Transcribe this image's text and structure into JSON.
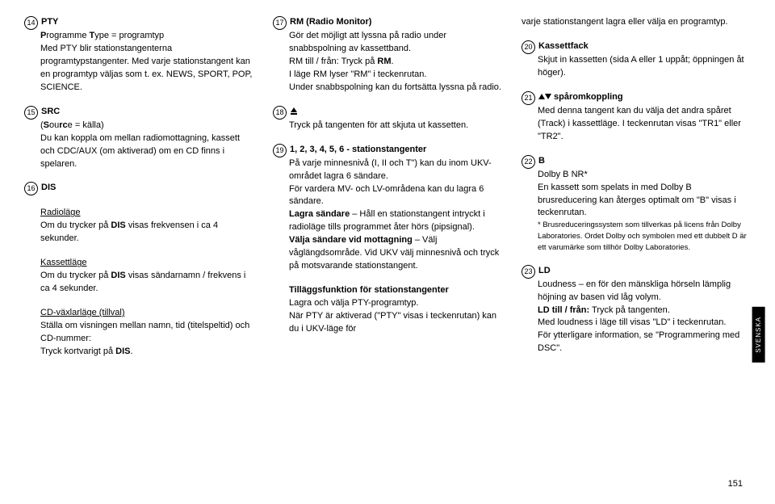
{
  "col1": {
    "n14": "14",
    "t14": "PTY",
    "p14a": "Programme Type = programtyp",
    "p14b": "Med PTY blir stationstangenterna programtypstangenter. Med varje stationstangent kan en programtyp väljas som t. ex. NEWS, SPORT, POP, SCIENCE.",
    "n15": "15",
    "t15": "SRC",
    "p15a": "(Source = källa)",
    "p15b": "Du kan koppla om mellan radiomottagning, kassett och CDC/AUX (om aktiverad) om en CD finns i spelaren.",
    "n16": "16",
    "t16": "DIS",
    "s1": "Radioläge",
    "p16a": "Om du trycker på DIS visas frekvensen i ca 4 sekunder.",
    "s2": "Kassettläge",
    "p16b": "Om du trycker på DIS visas sändarnamn / frekvens i ca 4 sekunder.",
    "s3": "CD-växlarläge (tillval)",
    "p16c": "Ställa om visningen mellan namn, tid (titelspeltid) och CD-nummer:",
    "p16d": "Tryck kortvarigt på DIS."
  },
  "col2": {
    "n17": "17",
    "t17": "RM (Radio Monitor)",
    "p17a": "Gör det möjligt att lyssna på radio under snabbspolning av kassettband.",
    "p17b": "RM till / från: Tryck på RM.",
    "p17c": "I läge RM lyser \"RM\" i teckenrutan.",
    "p17d": "Under snabbspolning kan du fortsätta lyssna på radio.",
    "n18": "18",
    "p18": "Tryck på tangenten för att skjuta ut kassetten.",
    "n19": "19",
    "t19": "1, 2, 3, 4, 5, 6 - stationstangenter",
    "p19a": "På varje minnesnivå (I, II och T\") kan du inom UKV-området lagra 6 sändare.",
    "p19b": "För vardera MV- och LV-områdena kan du lagra 6 sändare.",
    "p19c": "Lagra sändare – Håll en stationstangent intryckt i radioläge tills programmet åter hörs (pipsignal).",
    "p19d": "Välja sändare vid mottagning – Välj våglängdsområde. Vid UKV välj minnesnivå och tryck på motsvarande stationstangent.",
    "t19b": "Tilläggsfunktion för stationstangenter",
    "p19e": "Lagra och välja PTY-programtyp.",
    "p19f": "När PTY är aktiverad (\"PTY\" visas i teckenrutan) kan du i UKV-läge för"
  },
  "col3": {
    "p20a": "varje stationstangent lagra eller välja en programtyp.",
    "n20": "20",
    "t20": "Kassettfack",
    "p20b": "Skjut in kassetten (sida A eller 1 uppåt; öppningen åt höger).",
    "n21": "21",
    "t21": " spåromkoppling",
    "p21a": "Med denna tangent kan du välja det andra spåret (Track) i kassettläge. I teckenrutan visas \"TR1\" eller \"TR2\".",
    "n22": "22",
    "t22": "B",
    "p22a": "Dolby B NR*",
    "p22b": "En kassett som spelats in med Dolby B brusreducering kan återges optimalt om \"B\" visas i teckenrutan.",
    "p22c": "* Brusreduceringssystem som tillverkas på licens från Dolby Laboratories. Ordet Dolby och symbolen med ett dubbelt D är ett varumärke som tillhör Dolby Laboratories.",
    "n23": "23",
    "t23": "LD",
    "p23a": "Loudness – en för den mänskliga hörseln lämplig höjning av basen vid låg volym.",
    "p23b": "LD till / från: Tryck på tangenten.",
    "p23c": "Med loudness i läge till visas \"LD\" i teckenrutan.",
    "p23d": "För ytterligare information, se \"Programmering med DSC\"."
  },
  "side": "SVENSKA",
  "page": "151"
}
